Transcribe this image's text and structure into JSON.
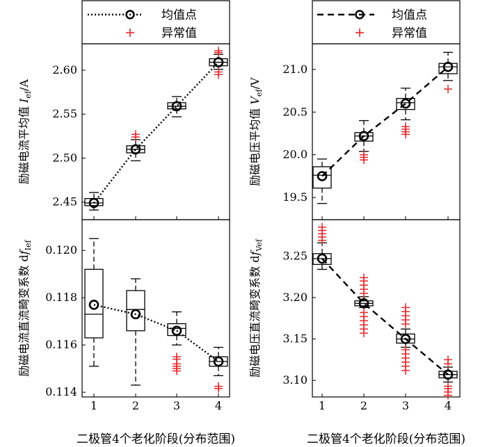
{
  "legend": {
    "mean_label": "均值点",
    "outlier_label": "异常值"
  },
  "colors": {
    "outlier": "#e8262b",
    "ink": "#000000"
  },
  "chart_data": [
    {
      "id": "tl",
      "type": "box",
      "ylabel_main": "励磁电流平均值 ",
      "ylabel_sym": "I",
      "ylabel_sub": "ef",
      "ylabel_unit": "/A",
      "xlabel": "",
      "ylim": [
        2.43,
        2.63
      ],
      "yticks": [
        2.45,
        2.5,
        2.55,
        2.6
      ],
      "ytick_labels": [
        "2.45",
        "2.50",
        "2.55",
        "2.60"
      ],
      "categories": [
        "1",
        "2",
        "3",
        "4"
      ],
      "mean_line": "dotted",
      "boxes": [
        {
          "category": "1",
          "whisker_low": 2.441,
          "q1": 2.446,
          "median": 2.449,
          "q3": 2.454,
          "whisker_high": 2.461,
          "mean": 2.449,
          "outliers": []
        },
        {
          "category": "2",
          "whisker_low": 2.497,
          "q1": 2.506,
          "median": 2.51,
          "q3": 2.514,
          "whisker_high": 2.521,
          "mean": 2.51,
          "outliers": [
            2.524,
            2.527
          ]
        },
        {
          "category": "3",
          "whisker_low": 2.547,
          "q1": 2.556,
          "median": 2.559,
          "q3": 2.563,
          "whisker_high": 2.57,
          "mean": 2.559,
          "outliers": []
        },
        {
          "category": "4",
          "whisker_low": 2.601,
          "q1": 2.605,
          "median": 2.609,
          "q3": 2.613,
          "whisker_high": 2.618,
          "mean": 2.609,
          "outliers": [
            2.595,
            2.598,
            2.62,
            2.622
          ]
        }
      ]
    },
    {
      "id": "tr",
      "type": "box",
      "ylabel_main": "励磁电压平均值 ",
      "ylabel_sym": "V",
      "ylabel_sub": "ef",
      "ylabel_unit": "/V",
      "xlabel": "",
      "ylim": [
        19.24,
        21.3
      ],
      "yticks": [
        19.5,
        20.0,
        20.5,
        21.0
      ],
      "ytick_labels": [
        "19.5",
        "20.0",
        "20.5",
        "21.0"
      ],
      "categories": [
        "1",
        "2",
        "3",
        "4"
      ],
      "mean_line": "dashed",
      "boxes": [
        {
          "category": "1",
          "whisker_low": 19.43,
          "q1": 19.61,
          "median": 19.76,
          "q3": 19.86,
          "whisker_high": 19.95,
          "mean": 19.75,
          "outliers": []
        },
        {
          "category": "2",
          "whisker_low": 20.04,
          "q1": 20.16,
          "median": 20.22,
          "q3": 20.26,
          "whisker_high": 20.4,
          "mean": 20.22,
          "outliers": [
            19.94,
            19.97,
            20.0
          ]
        },
        {
          "category": "3",
          "whisker_low": 20.41,
          "q1": 20.53,
          "median": 20.61,
          "q3": 20.66,
          "whisker_high": 20.78,
          "mean": 20.6,
          "outliers": [
            20.24,
            20.27,
            20.3,
            20.33
          ]
        },
        {
          "category": "4",
          "whisker_low": 20.87,
          "q1": 20.95,
          "median": 21.03,
          "q3": 21.07,
          "whisker_high": 21.2,
          "mean": 21.03,
          "outliers": [
            20.77
          ]
        }
      ]
    },
    {
      "id": "bl",
      "type": "box",
      "ylabel_main": "励磁电流直流畸变系数 d",
      "ylabel_sym": "f",
      "ylabel_sub": "Ief",
      "ylabel_unit": "",
      "xlabel": "二极管4个老化阶段(分布范围)",
      "ylim": [
        0.1138,
        0.1213
      ],
      "yticks": [
        0.114,
        0.116,
        0.118,
        0.12
      ],
      "ytick_labels": [
        "0.114",
        "0.116",
        "0.118",
        "0.120"
      ],
      "categories": [
        "1",
        "2",
        "3",
        "4"
      ],
      "mean_line": "dotted",
      "boxes": [
        {
          "category": "1",
          "whisker_low": 0.1151,
          "q1": 0.1163,
          "median": 0.1173,
          "q3": 0.1192,
          "whisker_high": 0.1205,
          "mean": 0.1177,
          "outliers": []
        },
        {
          "category": "2",
          "whisker_low": 0.1143,
          "q1": 0.1166,
          "median": 0.1175,
          "q3": 0.1183,
          "whisker_high": 0.1188,
          "mean": 0.1173,
          "outliers": []
        },
        {
          "category": "3",
          "whisker_low": 0.116,
          "q1": 0.1164,
          "median": 0.1167,
          "q3": 0.1169,
          "whisker_high": 0.1174,
          "mean": 0.1166,
          "outliers": [
            0.1149,
            0.115,
            0.1151,
            0.1152,
            0.1154,
            0.1155
          ]
        },
        {
          "category": "4",
          "whisker_low": 0.1147,
          "q1": 0.1151,
          "median": 0.1153,
          "q3": 0.1155,
          "whisker_high": 0.1159,
          "mean": 0.1153,
          "outliers": [
            0.11415,
            0.11425
          ]
        }
      ]
    },
    {
      "id": "br",
      "type": "box",
      "ylabel_main": "励磁电压直流畸变系数 d",
      "ylabel_sym": "f",
      "ylabel_sub": "Vef",
      "ylabel_unit": "",
      "xlabel": "二极管4个老化阶段(分布范围)",
      "ylim": [
        3.08,
        3.294
      ],
      "yticks": [
        3.1,
        3.15,
        3.2,
        3.25
      ],
      "ytick_labels": [
        "3.10",
        "3.15",
        "3.20",
        "3.25"
      ],
      "categories": [
        "1",
        "2",
        "3",
        "4"
      ],
      "mean_line": "dashed",
      "boxes": [
        {
          "category": "1",
          "whisker_low": 3.234,
          "q1": 3.24,
          "median": 3.247,
          "q3": 3.253,
          "whisker_high": 3.266,
          "mean": 3.247,
          "outliers": [
            3.269,
            3.273,
            3.277,
            3.281,
            3.285
          ]
        },
        {
          "category": "2",
          "whisker_low": 3.188,
          "q1": 3.19,
          "median": 3.193,
          "q3": 3.196,
          "whisker_high": 3.201,
          "mean": 3.193,
          "outliers": [
            3.157,
            3.162,
            3.167,
            3.172,
            3.177,
            3.182,
            3.205,
            3.21,
            3.215,
            3.22,
            3.224
          ]
        },
        {
          "category": "3",
          "whisker_low": 3.14,
          "q1": 3.145,
          "median": 3.15,
          "q3": 3.156,
          "whisker_high": 3.162,
          "mean": 3.15,
          "outliers": [
            3.112,
            3.117,
            3.122,
            3.127,
            3.132,
            3.137,
            3.168,
            3.173,
            3.178,
            3.183,
            3.188
          ]
        },
        {
          "category": "4",
          "whisker_low": 3.098,
          "q1": 3.103,
          "median": 3.107,
          "q3": 3.111,
          "whisker_high": 3.116,
          "mean": 3.107,
          "outliers": [
            3.082,
            3.086,
            3.09,
            3.093,
            3.12,
            3.125
          ]
        }
      ]
    }
  ]
}
